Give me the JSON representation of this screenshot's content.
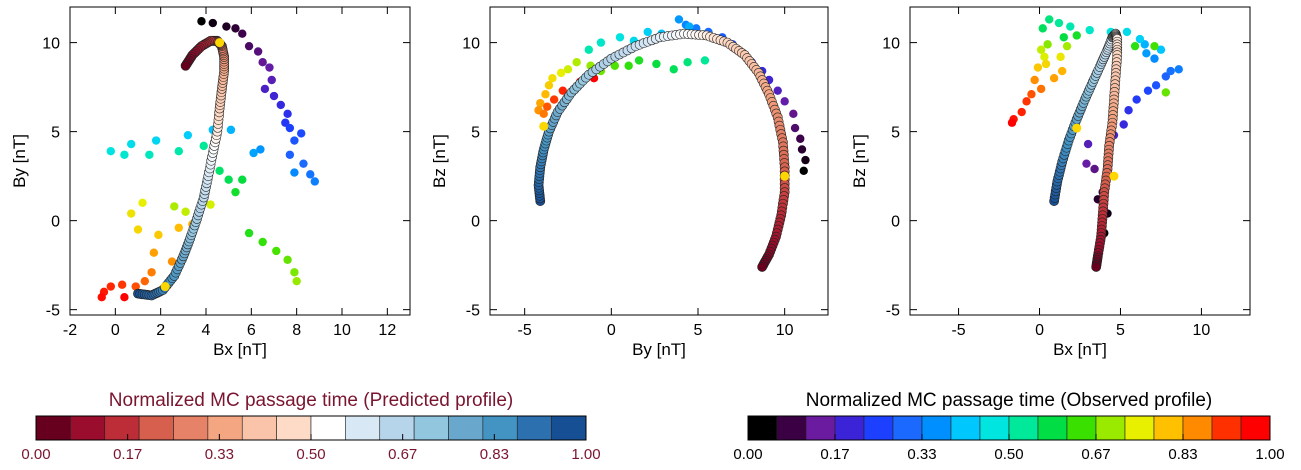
{
  "chart_data": [
    {
      "type": "scatter",
      "xlabel": "Bx [nT]",
      "ylabel": "By [nT]",
      "xlim": [
        -2,
        13
      ],
      "ylim": [
        -5.3,
        12
      ],
      "xticks": [
        "-2",
        "0",
        "2",
        "4",
        "6",
        "8",
        "10",
        "12"
      ],
      "yticks": [
        "-5",
        "0",
        "5",
        "10"
      ],
      "series": [
        {
          "kind": "observed",
          "points": [
            [
              3.8,
              11.2
            ],
            [
              4.3,
              11.1
            ],
            [
              4.9,
              10.9
            ],
            [
              5.3,
              10.8
            ],
            [
              5.6,
              10.5
            ],
            [
              5.9,
              9.8
            ],
            [
              6.3,
              9.5
            ],
            [
              6.5,
              8.9
            ],
            [
              6.8,
              8.6
            ],
            [
              6.9,
              7.9
            ],
            [
              6.6,
              7.4
            ],
            [
              7.0,
              7.0
            ],
            [
              7.3,
              6.5
            ],
            [
              7.6,
              6.0
            ],
            [
              7.5,
              5.5
            ],
            [
              7.7,
              5.2
            ],
            [
              8.2,
              4.9
            ],
            [
              7.9,
              4.5
            ],
            [
              7.7,
              3.7
            ],
            [
              8.3,
              3.2
            ],
            [
              8.6,
              2.6
            ],
            [
              8.8,
              2.2
            ],
            [
              7.9,
              2.7
            ],
            [
              6.4,
              4.0
            ],
            [
              6.1,
              3.8
            ],
            [
              5.1,
              5.1
            ],
            [
              4.3,
              5.1
            ],
            [
              3.2,
              4.8
            ],
            [
              1.8,
              4.5
            ],
            [
              0.7,
              4.3
            ],
            [
              -0.2,
              3.9
            ],
            [
              0.4,
              3.7
            ],
            [
              1.5,
              3.7
            ],
            [
              2.8,
              3.9
            ],
            [
              3.9,
              4.2
            ],
            [
              4.2,
              3.2
            ],
            [
              4.6,
              2.8
            ],
            [
              5.0,
              2.3
            ],
            [
              5.6,
              2.3
            ],
            [
              5.3,
              1.6
            ],
            [
              5.9,
              -0.7
            ],
            [
              6.5,
              -1.2
            ],
            [
              7.1,
              -1.7
            ],
            [
              7.6,
              -2.2
            ],
            [
              7.9,
              -2.9
            ],
            [
              8.0,
              -3.4
            ],
            [
              2.6,
              0.8
            ],
            [
              3.1,
              0.5
            ],
            [
              4.2,
              0.9
            ],
            [
              1.2,
              1.0
            ],
            [
              0.7,
              0.4
            ],
            [
              1.0,
              -0.5
            ],
            [
              1.9,
              -0.8
            ],
            [
              2.8,
              -0.4
            ],
            [
              3.4,
              -0.2
            ],
            [
              1.7,
              -1.8
            ],
            [
              2.5,
              -2.3
            ],
            [
              1.6,
              -2.9
            ],
            [
              1.3,
              -3.4
            ],
            [
              0.9,
              -3.7
            ],
            [
              0.3,
              -3.6
            ],
            [
              -0.2,
              -3.7
            ],
            [
              -0.5,
              -4.0
            ],
            [
              -0.6,
              -4.3
            ],
            [
              0.4,
              -4.3
            ]
          ]
        },
        {
          "kind": "predicted",
          "points": [
            [
              1.0,
              -4.1
            ],
            [
              1.6,
              -4.2
            ],
            [
              2.1,
              -3.9
            ],
            [
              2.6,
              -3.1
            ],
            [
              3.0,
              -2.0
            ],
            [
              3.3,
              -1.0
            ],
            [
              3.6,
              0.1
            ],
            [
              3.9,
              1.3
            ],
            [
              4.1,
              2.5
            ],
            [
              4.3,
              3.8
            ],
            [
              4.5,
              5.0
            ],
            [
              4.6,
              6.3
            ],
            [
              4.7,
              7.4
            ],
            [
              4.8,
              8.4
            ],
            [
              4.8,
              9.2
            ],
            [
              4.7,
              9.8
            ],
            [
              4.5,
              10.1
            ],
            [
              4.2,
              10.1
            ],
            [
              3.8,
              9.8
            ],
            [
              3.4,
              9.3
            ],
            [
              3.1,
              8.7
            ]
          ],
          "highlight": [
            [
              2.2,
              -3.7
            ],
            [
              4.6,
              10.0
            ]
          ]
        }
      ]
    },
    {
      "type": "scatter",
      "xlabel": "By [nT]",
      "ylabel": "Bz [nT]",
      "xlim": [
        -7,
        12.5
      ],
      "ylim": [
        -5.3,
        12
      ],
      "xticks": [
        "-5",
        "0",
        "5",
        "10"
      ],
      "yticks": [
        "-5",
        "0",
        "5",
        "10"
      ],
      "series": [
        {
          "kind": "observed",
          "points": [
            [
              11.1,
              2.8
            ],
            [
              11.2,
              3.4
            ],
            [
              11.0,
              4.0
            ],
            [
              10.9,
              4.6
            ],
            [
              10.6,
              5.2
            ],
            [
              10.5,
              6.0
            ],
            [
              10.0,
              6.7
            ],
            [
              9.6,
              7.3
            ],
            [
              9.1,
              7.9
            ],
            [
              8.7,
              8.4
            ],
            [
              8.1,
              8.9
            ],
            [
              7.5,
              9.4
            ],
            [
              7.0,
              9.9
            ],
            [
              6.4,
              10.3
            ],
            [
              5.6,
              10.6
            ],
            [
              4.9,
              10.8
            ],
            [
              4.3,
              11.0
            ],
            [
              3.9,
              11.3
            ],
            [
              4.5,
              10.9
            ],
            [
              2.9,
              10.5
            ],
            [
              2.1,
              10.6
            ],
            [
              1.3,
              10.1
            ],
            [
              0.5,
              10.3
            ],
            [
              -0.6,
              10.0
            ],
            [
              -1.3,
              9.6
            ],
            [
              5.4,
              9.0
            ],
            [
              4.4,
              8.9
            ],
            [
              3.6,
              8.5
            ],
            [
              2.6,
              8.8
            ],
            [
              1.6,
              9.0
            ],
            [
              1.0,
              8.7
            ],
            [
              0.2,
              8.7
            ],
            [
              -0.6,
              8.4
            ],
            [
              -1.2,
              8.7
            ],
            [
              -2.0,
              8.9
            ],
            [
              -2.5,
              8.5
            ],
            [
              -2.9,
              8.3
            ],
            [
              -3.4,
              8.0
            ],
            [
              -3.6,
              7.6
            ],
            [
              -3.8,
              7.1
            ],
            [
              -4.1,
              6.6
            ],
            [
              -4.2,
              6.2
            ],
            [
              -3.9,
              6.0
            ],
            [
              -3.7,
              6.4
            ],
            [
              -3.3,
              6.8
            ],
            [
              -2.8,
              7.3
            ],
            [
              -1.8,
              7.8
            ],
            [
              -1.0,
              8.0
            ]
          ]
        },
        {
          "kind": "predicted",
          "points": [
            [
              -4.1,
              1.1
            ],
            [
              -4.2,
              2.0
            ],
            [
              -4.1,
              3.0
            ],
            [
              -3.9,
              4.0
            ],
            [
              -3.6,
              5.0
            ],
            [
              -3.1,
              6.1
            ],
            [
              -2.3,
              7.2
            ],
            [
              -1.3,
              8.2
            ],
            [
              0.0,
              9.1
            ],
            [
              1.4,
              9.8
            ],
            [
              2.8,
              10.3
            ],
            [
              4.2,
              10.5
            ],
            [
              5.5,
              10.4
            ],
            [
              6.7,
              10.0
            ],
            [
              7.7,
              9.3
            ],
            [
              8.5,
              8.3
            ],
            [
              9.1,
              7.1
            ],
            [
              9.6,
              5.8
            ],
            [
              9.9,
              4.4
            ],
            [
              10.0,
              3.0
            ],
            [
              10.0,
              1.6
            ],
            [
              9.8,
              0.3
            ],
            [
              9.5,
              -0.9
            ],
            [
              9.1,
              -1.9
            ],
            [
              8.7,
              -2.6
            ]
          ],
          "highlight": [
            [
              -3.9,
              5.3
            ],
            [
              10.0,
              2.5
            ]
          ]
        }
      ]
    },
    {
      "type": "scatter",
      "xlabel": "Bx [nT]",
      "ylabel": "Bz [nT]",
      "xlim": [
        -8,
        13
      ],
      "ylim": [
        -5.3,
        12
      ],
      "xticks": [
        "-5",
        "0",
        "5",
        "10"
      ],
      "yticks": [
        "-5",
        "0",
        "5",
        "10"
      ],
      "series": [
        {
          "kind": "observed",
          "points": [
            [
              4.0,
              -0.7
            ],
            [
              4.2,
              0.4
            ],
            [
              3.6,
              1.2
            ],
            [
              3.9,
              1.6
            ],
            [
              4.1,
              2.4
            ],
            [
              3.4,
              2.9
            ],
            [
              2.9,
              3.2
            ],
            [
              3.0,
              4.3
            ],
            [
              4.6,
              4.8
            ],
            [
              5.2,
              5.4
            ],
            [
              5.5,
              6.2
            ],
            [
              6.0,
              6.8
            ],
            [
              6.7,
              7.3
            ],
            [
              7.2,
              7.6
            ],
            [
              7.8,
              8.1
            ],
            [
              8.1,
              8.4
            ],
            [
              8.6,
              8.5
            ],
            [
              7.1,
              9.1
            ],
            [
              6.6,
              9.4
            ],
            [
              6.5,
              9.9
            ],
            [
              7.5,
              9.6
            ],
            [
              6.2,
              10.2
            ],
            [
              5.4,
              10.6
            ],
            [
              4.4,
              10.6
            ],
            [
              3.1,
              10.7
            ],
            [
              1.9,
              10.9
            ],
            [
              1.2,
              11.1
            ],
            [
              0.6,
              11.3
            ],
            [
              0.2,
              10.8
            ],
            [
              1.5,
              10.3
            ],
            [
              2.3,
              10.4
            ],
            [
              5.9,
              9.8
            ],
            [
              7.1,
              9.8
            ],
            [
              7.8,
              7.2
            ],
            [
              0.5,
              9.9
            ],
            [
              1.7,
              9.8
            ],
            [
              0.1,
              9.6
            ],
            [
              0.3,
              9.2
            ],
            [
              1.3,
              9.2
            ],
            [
              0.4,
              8.8
            ],
            [
              -0.1,
              8.6
            ],
            [
              1.4,
              8.4
            ],
            [
              0.9,
              8.0
            ],
            [
              -0.3,
              7.9
            ],
            [
              0.1,
              7.4
            ],
            [
              -0.5,
              7.1
            ],
            [
              -0.8,
              6.7
            ],
            [
              -1.1,
              6.1
            ],
            [
              -1.6,
              5.7
            ],
            [
              -1.7,
              5.5
            ]
          ]
        },
        {
          "kind": "predicted",
          "points": [
            [
              0.9,
              1.1
            ],
            [
              1.1,
              2.2
            ],
            [
              1.4,
              3.3
            ],
            [
              1.8,
              4.5
            ],
            [
              2.3,
              5.7
            ],
            [
              2.8,
              6.8
            ],
            [
              3.3,
              7.8
            ],
            [
              3.8,
              8.8
            ],
            [
              4.2,
              9.6
            ],
            [
              4.5,
              10.3
            ],
            [
              4.7,
              10.5
            ],
            [
              4.8,
              10.2
            ],
            [
              4.8,
              9.3
            ],
            [
              4.7,
              8.1
            ],
            [
              4.6,
              6.8
            ],
            [
              4.5,
              5.5
            ],
            [
              4.3,
              4.2
            ],
            [
              4.2,
              2.9
            ],
            [
              4.0,
              1.6
            ],
            [
              3.9,
              0.3
            ],
            [
              3.8,
              -0.9
            ],
            [
              3.6,
              -2.0
            ],
            [
              3.5,
              -2.6
            ]
          ],
          "highlight": [
            [
              2.3,
              5.2
            ],
            [
              4.6,
              2.5
            ]
          ]
        }
      ]
    }
  ],
  "colorbars": {
    "predicted": {
      "title": "Normalized MC passage time (Predicted profile)",
      "title_color": "#7a1530",
      "ticks": [
        "0.00",
        "0.17",
        "0.33",
        "0.50",
        "0.67",
        "0.83",
        "1.00"
      ],
      "colors": [
        "#67001f",
        "#9a0d2c",
        "#bd2d37",
        "#d6604d",
        "#e58267",
        "#f4a582",
        "#fac4aa",
        "#fddbc7",
        "#ffffff",
        "#d8e8f5",
        "#b6d4ea",
        "#92c5de",
        "#6aa7cc",
        "#4393c3",
        "#2c70b0",
        "#174f94"
      ]
    },
    "observed": {
      "title": "Normalized MC passage time (Observed profile)",
      "title_color": "#000000",
      "ticks": [
        "0.00",
        "0.17",
        "0.33",
        "0.50",
        "0.67",
        "0.83",
        "1.00"
      ],
      "colors": [
        "#000000",
        "#3a0043",
        "#6a1ba0",
        "#3b24d8",
        "#1d3fff",
        "#1c69ff",
        "#008fff",
        "#00c8ff",
        "#00e5e0",
        "#00e89a",
        "#00dd45",
        "#39e000",
        "#9aea00",
        "#e8f000",
        "#ffc000",
        "#ff8a00",
        "#ff3000",
        "#ff0000"
      ]
    },
    "highlight_color": "#ffd700"
  }
}
